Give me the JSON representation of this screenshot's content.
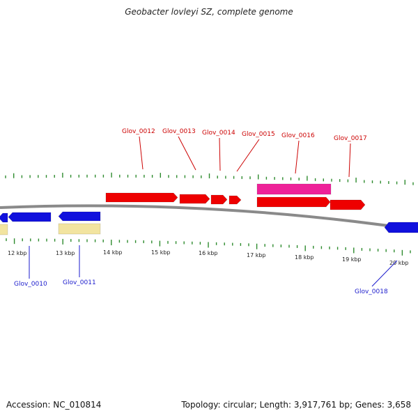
{
  "title": "Geobacter lovleyi SZ, complete genome",
  "footer": {
    "accession": "Accession: NC_010814",
    "summary": "Topology: circular; Length: 3,917,761 bp; Genes: 3,658"
  },
  "colors": {
    "backbone": "#8a8a8a",
    "tick": "#2e8b2e",
    "forward_gene": "#ee0000",
    "forward_label": "#cc0000",
    "reverse_gene": "#1111dd",
    "reverse_label": "#1a1acc",
    "rna_gene": "#ee2299",
    "pseudo_feature": "#f2e4a0"
  },
  "scale_labels": [
    "12 kbp",
    "13 kbp",
    "14 kbp",
    "15 kbp",
    "16 kbp",
    "17 kbp",
    "18 kbp",
    "19 kbp",
    "20 kbp"
  ],
  "gene_labels": {
    "forward": [
      "Glov_0012",
      "Glov_0013",
      "Glov_0014",
      "Glov_0015",
      "Glov_0016",
      "Glov_0017"
    ],
    "reverse": [
      "Glov_0010",
      "Glov_0011",
      "Glov_0018"
    ]
  }
}
